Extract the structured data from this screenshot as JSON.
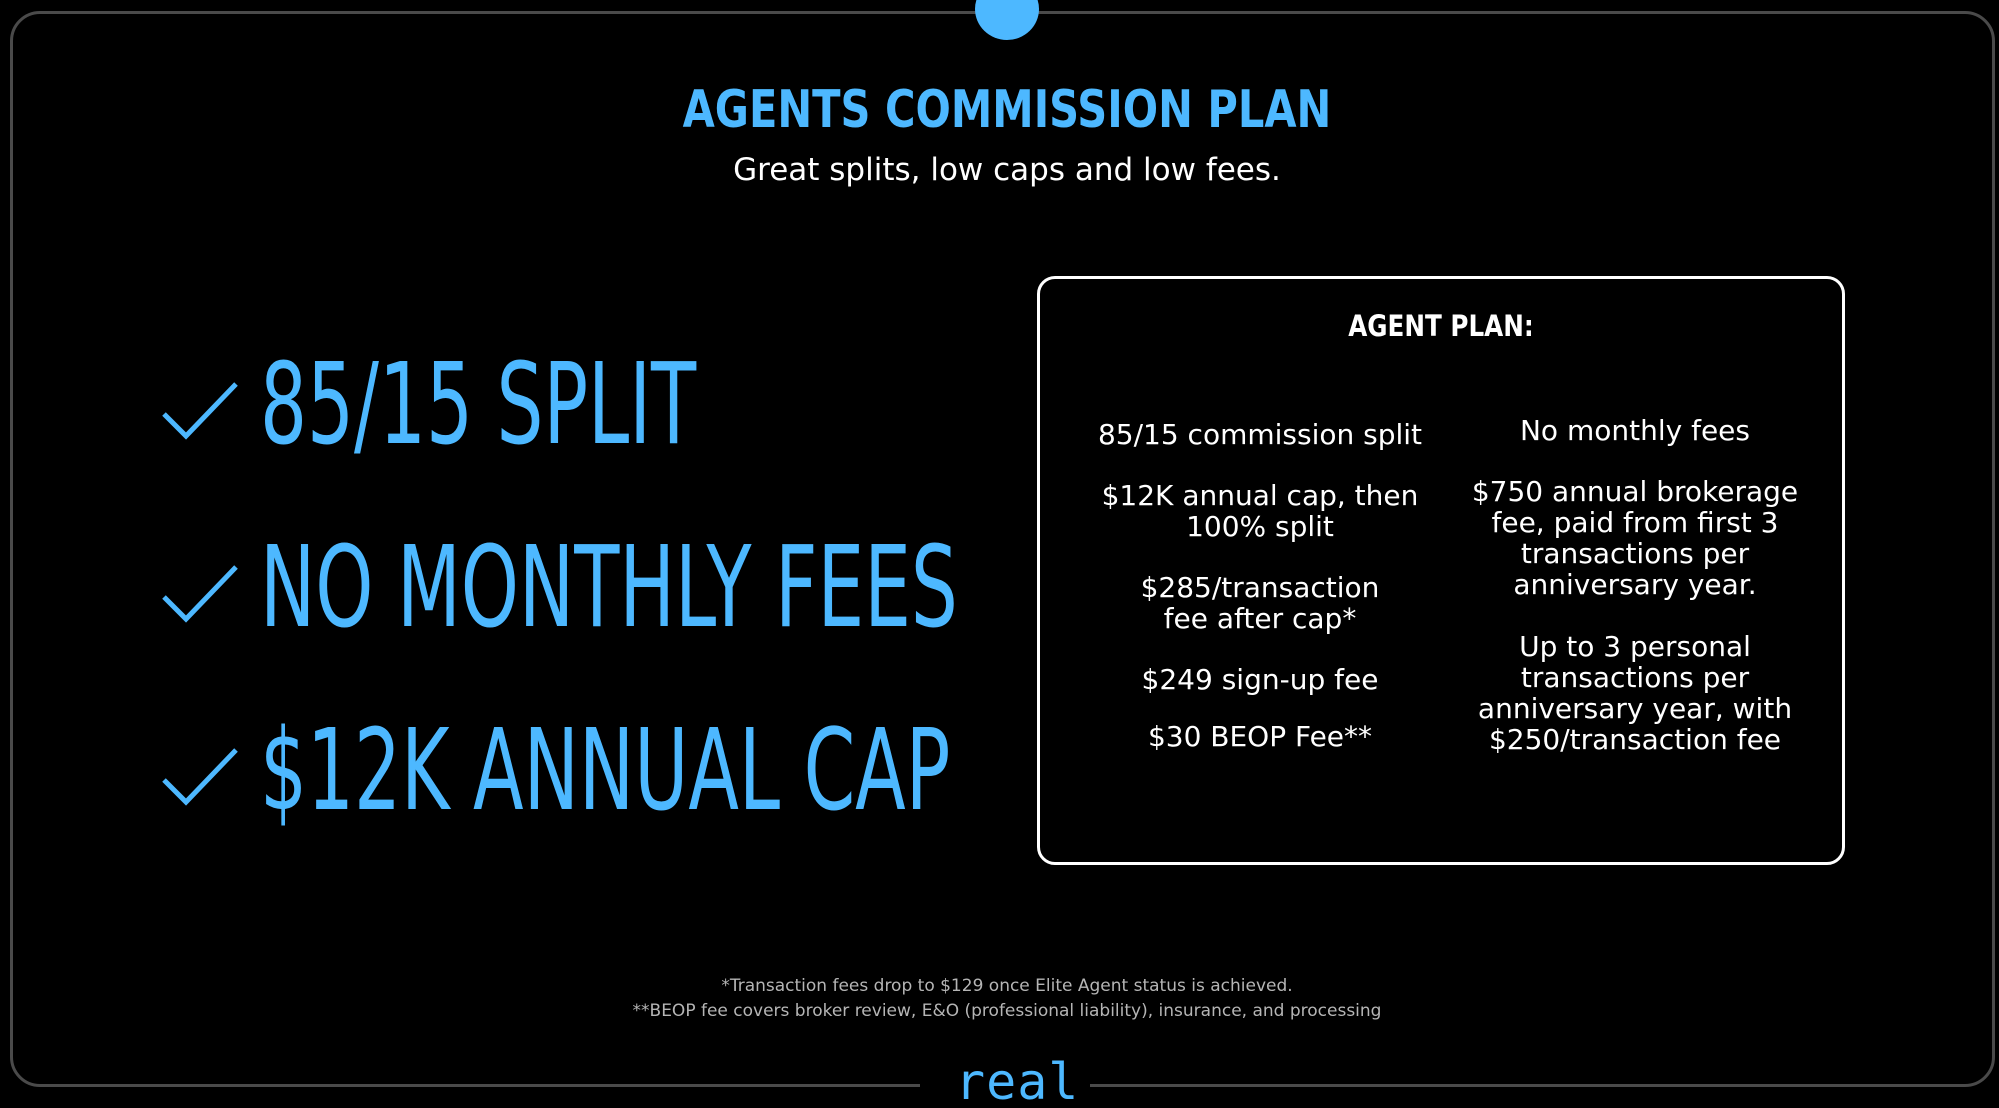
{
  "slide": {
    "title": "AGENTS COMMISSION PLAN",
    "subtitle": "Great splits, low caps and low fees.",
    "accent_color": "#4db8ff"
  },
  "highlights": [
    {
      "icon": "checkmark-icon",
      "text": "85/15 SPLIT"
    },
    {
      "icon": "checkmark-icon",
      "text": "NO MONTHLY FEES"
    },
    {
      "icon": "checkmark-icon",
      "text": "$12K ANNUAL CAP"
    }
  ],
  "plan": {
    "heading": "AGENT PLAN:",
    "left_column": [
      "85/15 commission split",
      "$12K annual cap, then\n100% split",
      "$285/transaction\nfee after cap*",
      "$249 sign-up fee",
      "$30 BEOP Fee**"
    ],
    "right_column": [
      "No monthly fees",
      "$750 annual brokerage\nfee, paid from first 3\ntransactions per\nanniversary year.",
      "Up to 3 personal\ntransactions per\nanniversary year, with\n$250/transaction fee"
    ]
  },
  "footnotes": [
    "*Transaction fees drop to $129 once Elite Agent status is achieved.",
    "**BEOP fee covers broker review, E&O (professional liability), insurance, and processing"
  ],
  "logo": "real"
}
